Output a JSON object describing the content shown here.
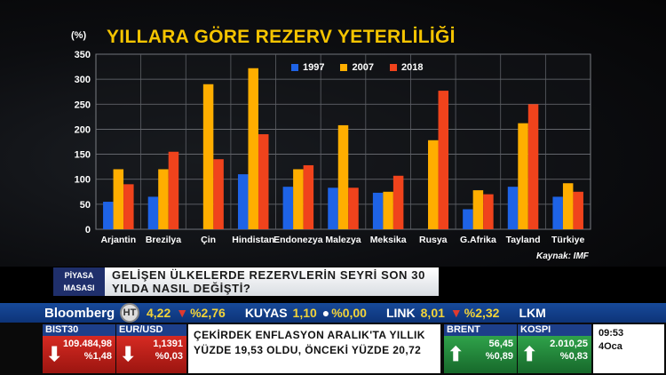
{
  "chart_data": {
    "type": "bar",
    "title": "YILLARA GÖRE REZERV YETERLİLİĞİ",
    "unit": "(%)",
    "source": "Kaynak: IMF",
    "categories": [
      "Arjantin",
      "Brezilya",
      "Çin",
      "Hindistan",
      "Endonezya",
      "Malezya",
      "Meksika",
      "Rusya",
      "G.Afrika",
      "Tayland",
      "Türkiye"
    ],
    "series": [
      {
        "name": "1997",
        "color": "#1e63e6",
        "values": [
          55,
          65,
          null,
          110,
          85,
          83,
          73,
          null,
          40,
          85,
          65
        ]
      },
      {
        "name": "2007",
        "color": "#ffae00",
        "values": [
          120,
          120,
          290,
          322,
          120,
          208,
          75,
          178,
          78,
          212,
          92
        ]
      },
      {
        "name": "2018",
        "color": "#f0431c",
        "values": [
          90,
          155,
          140,
          190,
          128,
          83,
          107,
          277,
          70,
          250,
          75
        ]
      }
    ],
    "yticks": [
      0,
      50,
      100,
      150,
      200,
      250,
      300,
      350
    ],
    "ylim": [
      0,
      350
    ],
    "grid": true,
    "legend": "top-right"
  },
  "lower_third": {
    "badge_line1": "PİYASA",
    "badge_line2": "MASASI",
    "headline_line1": "GELİŞEN ÜLKELERDE REZERVLERİN SEYRİ SON 30",
    "headline_line2": "YILDA NASIL DEĞİŞTİ?"
  },
  "ticker": {
    "brand": "Bloomberg",
    "logo_text": "HT",
    "first_value": "4,22",
    "first_change": "%2,76",
    "items": [
      {
        "name": "KUYAS",
        "value": "1,10",
        "change": "%0,00"
      },
      {
        "name": "LINK",
        "value": "8,01",
        "change": "%2,32"
      },
      {
        "name": "LKM",
        "value": "",
        "change": ""
      }
    ]
  },
  "markets": [
    {
      "label": "BIST30",
      "v1": "109.484,98",
      "v2": "%1,48",
      "dir": "down"
    },
    {
      "label": "EUR/USD",
      "v1": "1,1391",
      "v2": "%0,03",
      "dir": "down"
    },
    {
      "label": "BRENT",
      "v1": "56,45",
      "v2": "%0,89",
      "dir": "up"
    },
    {
      "label": "KOSPI",
      "v1": "2.010,25",
      "v2": "%0,83",
      "dir": "up"
    }
  ],
  "news": {
    "line1": "ÇEKİRDEK ENFLASYON ARALIK'TA YILLIK",
    "line2": "YÜZDE 19,53 OLDU, ÖNCEKİ YÜZDE 20,72"
  },
  "clock": {
    "time": "09:53",
    "date": "4Oca"
  }
}
